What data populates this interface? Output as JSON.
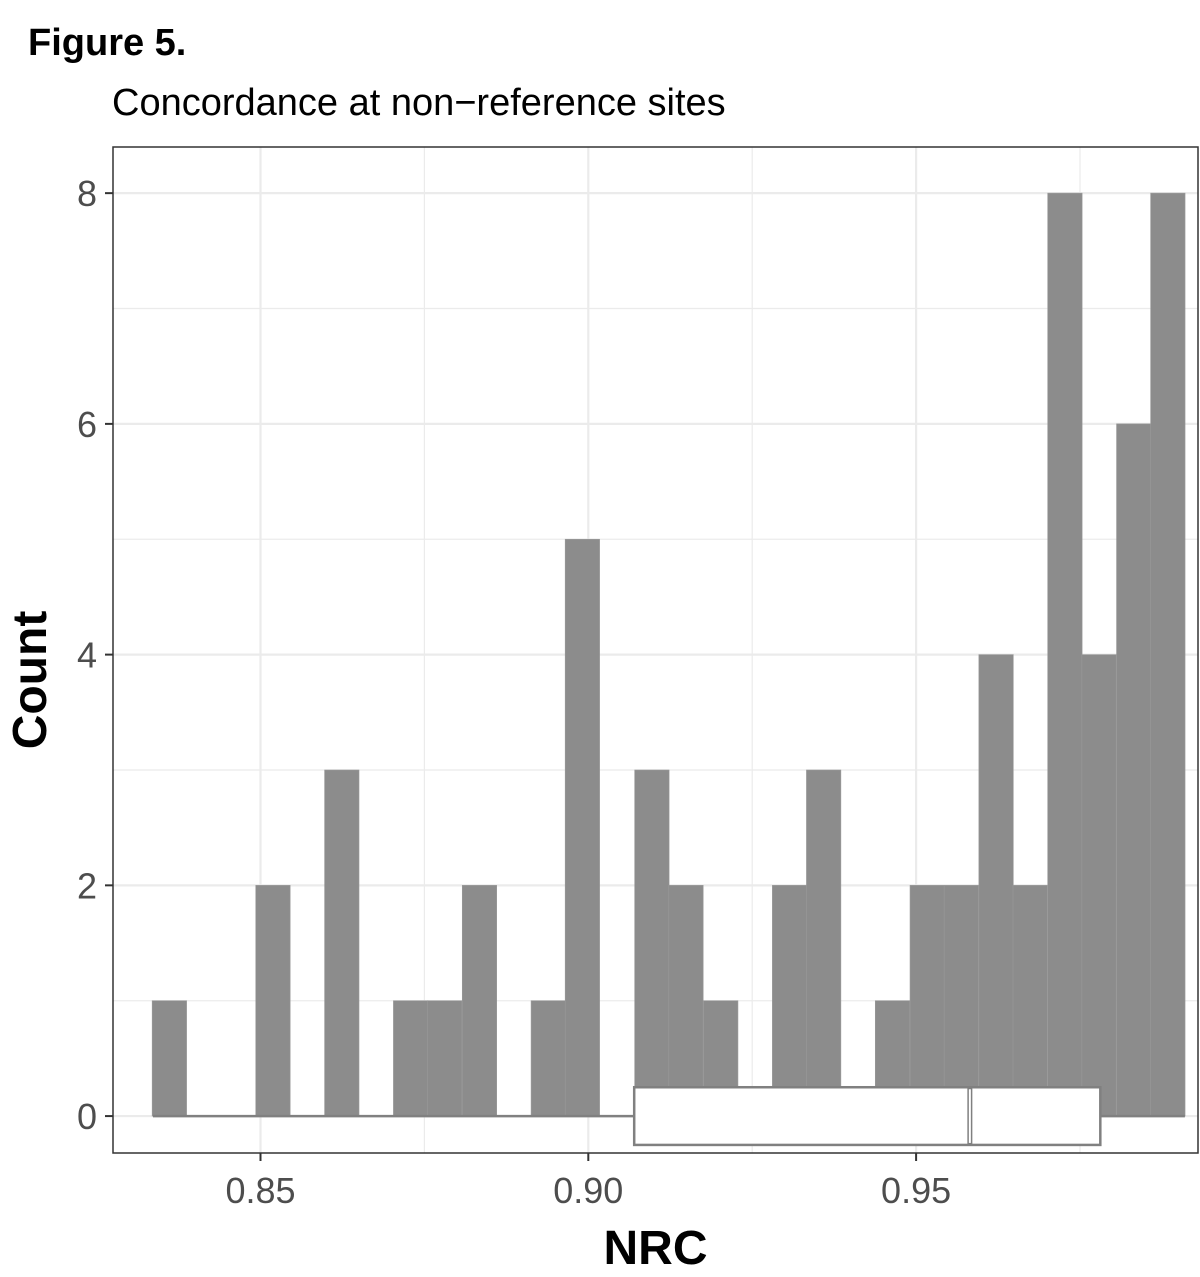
{
  "figure_label": "Figure 5.",
  "chart_data": {
    "type": "bar",
    "subtype": "histogram with horizontal boxplot",
    "title": "Concordance at non−reference sites",
    "xlabel": "NRC",
    "ylabel": "Count",
    "xlim": [
      0.8275,
      0.993
    ],
    "ylim": [
      -0.32,
      8.4
    ],
    "x_ticks": [
      0.85,
      0.9,
      0.95
    ],
    "x_tick_labels": [
      "0.85",
      "0.90",
      "0.95"
    ],
    "y_ticks": [
      0,
      2,
      4,
      6,
      8
    ],
    "y_tick_labels": [
      "0",
      "2",
      "4",
      "6",
      "8"
    ],
    "grid": true,
    "bin_width": 0.00525,
    "bin_centers": [
      0.8361,
      0.8414,
      0.8466,
      0.8519,
      0.8571,
      0.8624,
      0.8676,
      0.8729,
      0.8781,
      0.8834,
      0.8886,
      0.8939,
      0.8991,
      0.9044,
      0.9097,
      0.9149,
      0.9202,
      0.9254,
      0.9307,
      0.9359,
      0.9412,
      0.9464,
      0.9517,
      0.9569,
      0.9622,
      0.9674,
      0.9727,
      0.9779,
      0.9832,
      0.9884
    ],
    "values": [
      1,
      0,
      0,
      2,
      0,
      3,
      0,
      1,
      1,
      2,
      0,
      1,
      5,
      0,
      3,
      2,
      1,
      0,
      2,
      3,
      0,
      1,
      2,
      2,
      4,
      2,
      8,
      4,
      6,
      8
    ],
    "boxplot": {
      "min": 0.8336,
      "q1": 0.907,
      "median": 0.9582,
      "q3": 0.9781,
      "max": 0.991
    },
    "colors": {
      "bars": "#8c8c8c",
      "box_outline": "#808080",
      "grid": "#ebebeb",
      "panel_border": "#333333"
    }
  }
}
